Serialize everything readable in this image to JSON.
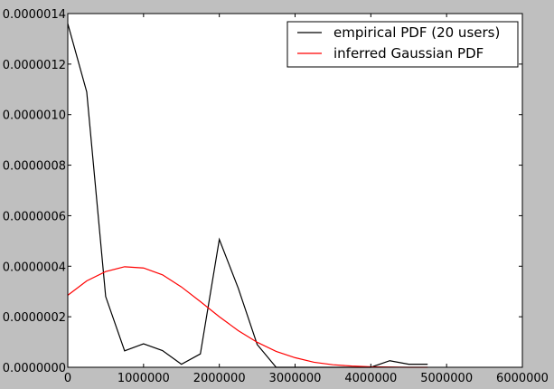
{
  "chart_data": {
    "type": "line",
    "title": "",
    "xlabel": "",
    "ylabel": "",
    "xlim": [
      0,
      6000000
    ],
    "ylim": [
      0,
      1.4e-06
    ],
    "grid": false,
    "legend_placement": "top-right",
    "background_color": "#bfbfbf",
    "plot_background_color": "#ffffff",
    "x_ticks": [
      {
        "value": 0,
        "label": "0"
      },
      {
        "value": 1000000,
        "label": "1000000"
      },
      {
        "value": 2000000,
        "label": "2000000"
      },
      {
        "value": 3000000,
        "label": "3000000"
      },
      {
        "value": 4000000,
        "label": "4000000"
      },
      {
        "value": 5000000,
        "label": "5000000"
      },
      {
        "value": 6000000,
        "label": "6000000"
      }
    ],
    "y_ticks": [
      {
        "value": 0,
        "label": "0.0000000"
      },
      {
        "value": 2e-07,
        "label": "0.0000002"
      },
      {
        "value": 4e-07,
        "label": "0.0000004"
      },
      {
        "value": 6e-07,
        "label": "0.0000006"
      },
      {
        "value": 8e-07,
        "label": "0.0000008"
      },
      {
        "value": 1e-06,
        "label": "0.0000010"
      },
      {
        "value": 1.2e-06,
        "label": "0.0000012"
      },
      {
        "value": 1.4e-06,
        "label": "0.0000014"
      }
    ],
    "series": [
      {
        "name": "empirical PDF (20 users)",
        "color": "#000000",
        "x": [
          0,
          250000,
          500000,
          750000,
          1000000,
          1250000,
          1500000,
          1750000,
          2000000,
          2250000,
          2500000,
          2750000,
          3000000,
          3250000,
          3500000,
          3750000,
          4000000,
          4250000,
          4500000,
          4750000
        ],
        "y": [
          1.36e-06,
          1.09e-06,
          2.8e-07,
          6.5e-08,
          9.3e-08,
          6.6e-08,
          1.2e-08,
          5.3e-08,
          5.06e-07,
          3.13e-07,
          9e-08,
          0.0,
          0.0,
          0.0,
          0.0,
          0.0,
          0.0,
          2.6e-08,
          1.2e-08,
          1.2e-08
        ]
      },
      {
        "name": "inferred Gaussian PDF",
        "color": "#ff0000",
        "x": [
          0,
          250000,
          500000,
          750000,
          1000000,
          1250000,
          1500000,
          1750000,
          2000000,
          2250000,
          2500000,
          2750000,
          3000000,
          3250000,
          3500000,
          3750000,
          4000000,
          4250000,
          4500000,
          4750000
        ],
        "y": [
          2.85e-07,
          3.42e-07,
          3.79e-07,
          3.98e-07,
          3.93e-07,
          3.66e-07,
          3.18e-07,
          2.6e-07,
          2e-07,
          1.45e-07,
          9.9e-08,
          6.3e-08,
          3.8e-08,
          2e-08,
          1e-08,
          5e-09,
          2e-09,
          1e-09,
          0.0,
          0.0
        ]
      }
    ]
  }
}
